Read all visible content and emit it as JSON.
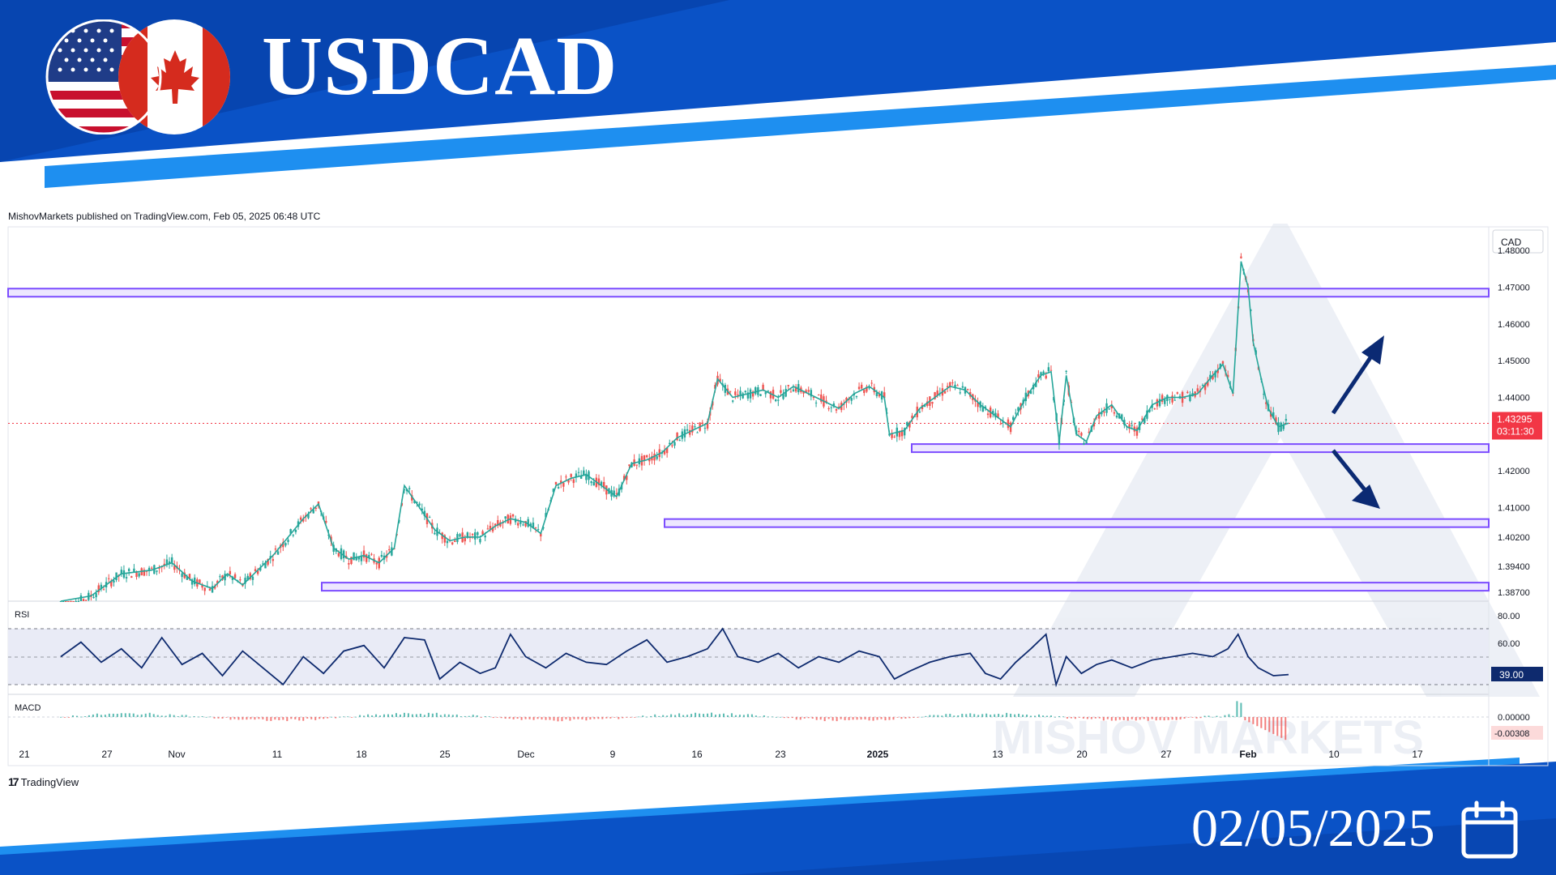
{
  "header": {
    "title": "USDCAD",
    "date": "02/05/2025"
  },
  "published_line": "MishovMarkets published on TradingView.com, Feb 05, 2025 06:48 UTC",
  "footer": {
    "brand": "TradingView"
  },
  "colors": {
    "banner": "#0a52c6",
    "banner_dark": "#063b9f",
    "accent": "#1e8ff0",
    "level": "#7c4dff",
    "arrow": "#0b2a73",
    "rsi_line": "#0e2a6e",
    "price_label": "#f23645"
  },
  "icons": {
    "flags": "us-canada-flags",
    "calendar": "calendar-icon",
    "tv": "tradingview-logo-icon"
  },
  "chart_data": {
    "type": "candlestick",
    "symbol": "USDCAD",
    "currency_label": "CAD",
    "price_axis_ticks": [
      "1.48000",
      "1.47000",
      "1.46000",
      "1.45000",
      "1.44000",
      "1.43295",
      "1.42000",
      "1.41000",
      "1.40200",
      "1.39400",
      "1.38700"
    ],
    "ylim": [
      1.385,
      1.482
    ],
    "current_price": "1.43295",
    "countdown": "03:11:30",
    "x_ticks": [
      "21",
      "27",
      "Nov",
      "11",
      "18",
      "25",
      "Dec",
      "9",
      "16",
      "23",
      "2025",
      "13",
      "20",
      "27",
      "Feb",
      "10",
      "17"
    ],
    "support_resistance_levels": [
      1.4685,
      1.4262,
      1.4058,
      1.3885
    ],
    "projection_arrows": [
      "up",
      "down"
    ],
    "price_path": [
      [
        0,
        1.382
      ],
      [
        30,
        1.386
      ],
      [
        60,
        1.392
      ],
      [
        90,
        1.393
      ],
      [
        110,
        1.395
      ],
      [
        130,
        1.39
      ],
      [
        150,
        1.388
      ],
      [
        165,
        1.392
      ],
      [
        180,
        1.389
      ],
      [
        195,
        1.393
      ],
      [
        210,
        1.397
      ],
      [
        225,
        1.402
      ],
      [
        240,
        1.407
      ],
      [
        255,
        1.411
      ],
      [
        270,
        1.399
      ],
      [
        285,
        1.396
      ],
      [
        300,
        1.397
      ],
      [
        315,
        1.395
      ],
      [
        330,
        1.399
      ],
      [
        340,
        1.416
      ],
      [
        355,
        1.41
      ],
      [
        370,
        1.404
      ],
      [
        385,
        1.401
      ],
      [
        400,
        1.402
      ],
      [
        415,
        1.402
      ],
      [
        430,
        1.405
      ],
      [
        445,
        1.407
      ],
      [
        460,
        1.406
      ],
      [
        475,
        1.403
      ],
      [
        490,
        1.416
      ],
      [
        505,
        1.418
      ],
      [
        520,
        1.419
      ],
      [
        535,
        1.416
      ],
      [
        550,
        1.413
      ],
      [
        565,
        1.422
      ],
      [
        580,
        1.423
      ],
      [
        595,
        1.425
      ],
      [
        610,
        1.429
      ],
      [
        625,
        1.431
      ],
      [
        640,
        1.433
      ],
      [
        650,
        1.445
      ],
      [
        665,
        1.44
      ],
      [
        680,
        1.441
      ],
      [
        695,
        1.442
      ],
      [
        710,
        1.44
      ],
      [
        725,
        1.443
      ],
      [
        740,
        1.441
      ],
      [
        755,
        1.439
      ],
      [
        770,
        1.437
      ],
      [
        785,
        1.441
      ],
      [
        800,
        1.443
      ],
      [
        815,
        1.44
      ],
      [
        820,
        1.43
      ],
      [
        835,
        1.431
      ],
      [
        850,
        1.437
      ],
      [
        865,
        1.44
      ],
      [
        880,
        1.443
      ],
      [
        895,
        1.442
      ],
      [
        910,
        1.438
      ],
      [
        925,
        1.435
      ],
      [
        940,
        1.432
      ],
      [
        955,
        1.44
      ],
      [
        970,
        1.446
      ],
      [
        980,
        1.447
      ],
      [
        988,
        1.428
      ],
      [
        995,
        1.446
      ],
      [
        1005,
        1.43
      ],
      [
        1015,
        1.428
      ],
      [
        1025,
        1.435
      ],
      [
        1040,
        1.438
      ],
      [
        1055,
        1.432
      ],
      [
        1065,
        1.431
      ],
      [
        1080,
        1.438
      ],
      [
        1095,
        1.44
      ],
      [
        1110,
        1.44
      ],
      [
        1125,
        1.441
      ],
      [
        1140,
        1.446
      ],
      [
        1150,
        1.449
      ],
      [
        1160,
        1.441
      ],
      [
        1168,
        1.477
      ],
      [
        1175,
        1.47
      ],
      [
        1180,
        1.455
      ],
      [
        1188,
        1.445
      ],
      [
        1195,
        1.437
      ],
      [
        1205,
        1.432
      ],
      [
        1215,
        1.433
      ]
    ],
    "rsi": {
      "label": "RSI",
      "ticks": [
        "80.00",
        "60.00"
      ],
      "value": "39.00",
      "path": [
        [
          0,
          55
        ],
        [
          20,
          68
        ],
        [
          40,
          50
        ],
        [
          60,
          62
        ],
        [
          80,
          45
        ],
        [
          100,
          72
        ],
        [
          120,
          48
        ],
        [
          140,
          58
        ],
        [
          160,
          38
        ],
        [
          180,
          60
        ],
        [
          200,
          45
        ],
        [
          220,
          30
        ],
        [
          240,
          55
        ],
        [
          260,
          40
        ],
        [
          280,
          60
        ],
        [
          300,
          65
        ],
        [
          320,
          45
        ],
        [
          340,
          72
        ],
        [
          360,
          70
        ],
        [
          375,
          35
        ],
        [
          395,
          50
        ],
        [
          415,
          40
        ],
        [
          430,
          45
        ],
        [
          445,
          75
        ],
        [
          460,
          55
        ],
        [
          480,
          45
        ],
        [
          500,
          58
        ],
        [
          520,
          50
        ],
        [
          540,
          48
        ],
        [
          560,
          60
        ],
        [
          580,
          70
        ],
        [
          600,
          50
        ],
        [
          620,
          55
        ],
        [
          640,
          62
        ],
        [
          655,
          80
        ],
        [
          670,
          55
        ],
        [
          690,
          50
        ],
        [
          710,
          58
        ],
        [
          730,
          45
        ],
        [
          750,
          55
        ],
        [
          770,
          50
        ],
        [
          790,
          60
        ],
        [
          810,
          55
        ],
        [
          825,
          35
        ],
        [
          840,
          42
        ],
        [
          860,
          50
        ],
        [
          880,
          55
        ],
        [
          900,
          58
        ],
        [
          915,
          40
        ],
        [
          930,
          35
        ],
        [
          945,
          50
        ],
        [
          960,
          62
        ],
        [
          975,
          75
        ],
        [
          985,
          30
        ],
        [
          995,
          55
        ],
        [
          1010,
          40
        ],
        [
          1025,
          48
        ],
        [
          1040,
          52
        ],
        [
          1060,
          45
        ],
        [
          1080,
          52
        ],
        [
          1100,
          55
        ],
        [
          1120,
          58
        ],
        [
          1140,
          55
        ],
        [
          1155,
          62
        ],
        [
          1165,
          75
        ],
        [
          1175,
          55
        ],
        [
          1185,
          45
        ],
        [
          1200,
          38
        ],
        [
          1215,
          39
        ]
      ]
    },
    "macd": {
      "label": "MACD",
      "ticks": [
        "0.00000"
      ],
      "value": "-0.00308"
    }
  }
}
